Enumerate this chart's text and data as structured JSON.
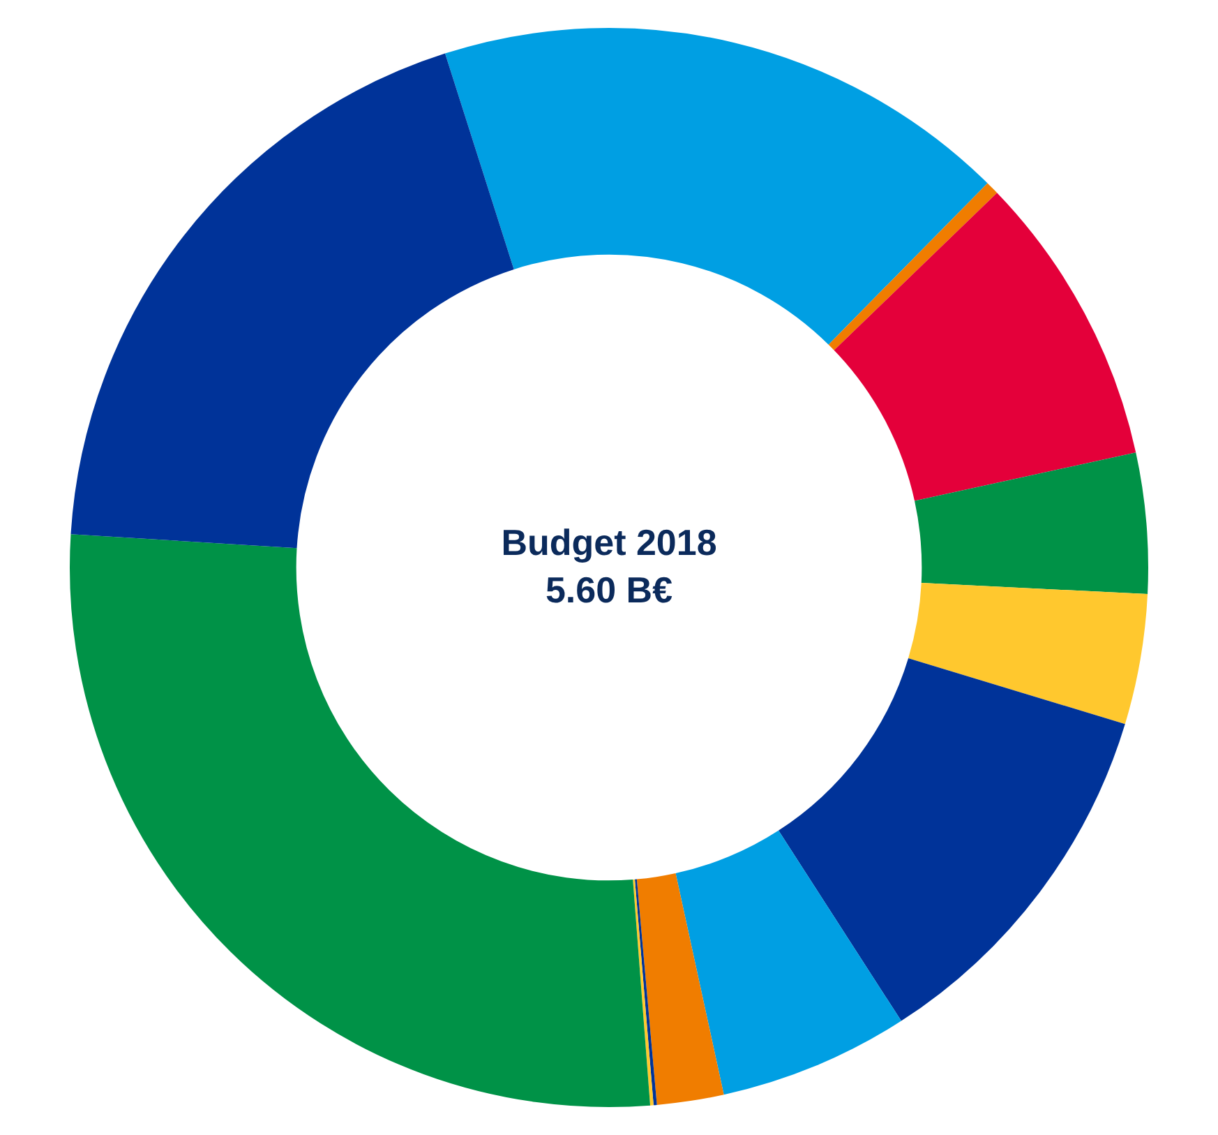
{
  "chart_data": {
    "type": "donut",
    "title": "Budget 2018",
    "subtitle": "5.60 B€",
    "categories": [
      null,
      null,
      null,
      null,
      null,
      null,
      null,
      null,
      null,
      null,
      null,
      null
    ],
    "values": [
      17.3,
      0.4,
      8.8,
      4.2,
      3.9,
      11.2,
      5.7,
      2.0,
      0.1,
      0.1,
      27.2,
      19.1
    ],
    "colors": [
      "#009fe3",
      "#f07d00",
      "#e4003a",
      "#009247",
      "#ffc82e",
      "#003399",
      "#009fe3",
      "#f07d00",
      "#003399",
      "#ffc82e",
      "#009247",
      "#003399"
    ],
    "legend": false
  }
}
